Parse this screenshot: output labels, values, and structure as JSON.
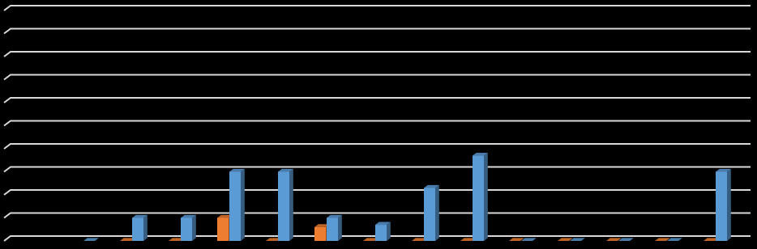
{
  "chart_data": {
    "type": "bar3d",
    "categories": [
      null,
      null,
      null,
      null,
      null,
      null,
      null,
      null,
      null,
      null,
      null,
      null,
      null,
      null,
      null
    ],
    "series": [
      {
        "color": "#ed7d31",
        "values": [
          null,
          null,
          0,
          0,
          1,
          0,
          0.6,
          0,
          0,
          0,
          0,
          0,
          0,
          0,
          0
        ]
      },
      {
        "color": "#5b9bd5",
        "values": [
          null,
          0,
          1,
          1,
          3,
          3,
          1,
          0.7,
          2.3,
          3.7,
          0,
          0,
          0,
          0,
          3
        ]
      }
    ],
    "ylim": [
      0,
      10
    ],
    "yticks": [
      0,
      1,
      2,
      3,
      4,
      5,
      6,
      7,
      8,
      9,
      10
    ],
    "grid": true
  }
}
